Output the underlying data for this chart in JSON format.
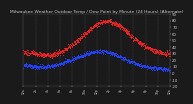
{
  "title": "Milwaukee Weather Outdoor Temp / Dew Point by Minute (24 Hours) (Alternate)",
  "title_fontsize": 3.2,
  "bg_color": "#1a1a1a",
  "plot_bg": "#1a1a1a",
  "temp_color": "#ff2222",
  "dew_color": "#2244ff",
  "ylim": [
    -20,
    90
  ],
  "xlim": [
    0,
    1440
  ],
  "ytick_vals": [
    -20,
    -10,
    0,
    10,
    20,
    30,
    40,
    50,
    60,
    70,
    80,
    90
  ],
  "ytick_fontsize": 2.8,
  "xtick_fontsize": 2.2,
  "grid_color": "#555555",
  "num_points": 1440,
  "title_color": "#cccccc",
  "tick_color": "#cccccc",
  "spine_color": "#555555"
}
